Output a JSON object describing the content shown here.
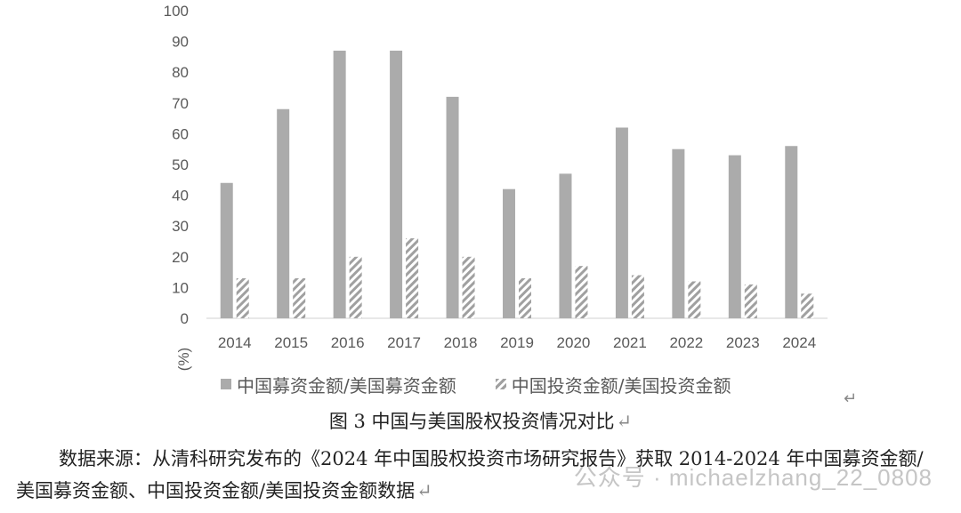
{
  "chart_data": {
    "type": "bar",
    "categories": [
      "2014",
      "2015",
      "2016",
      "2017",
      "2018",
      "2019",
      "2020",
      "2021",
      "2022",
      "2023",
      "2024"
    ],
    "series": [
      {
        "name": "中国募资金额/美国募资金额",
        "values": [
          44,
          68,
          87,
          87,
          72,
          42,
          47,
          62,
          55,
          53,
          56
        ]
      },
      {
        "name": "中国投资金额/美国投资金额",
        "values": [
          13,
          13,
          20,
          26,
          20,
          13,
          17,
          14,
          12,
          11,
          8
        ]
      }
    ],
    "ylabel": "(%)",
    "ylim": [
      0,
      100
    ],
    "yticks": [
      0,
      10,
      20,
      30,
      40,
      50,
      60,
      70,
      80,
      90,
      100
    ],
    "grid": false,
    "legend_position": "bottom",
    "colors": {
      "series1": "#ababab",
      "series2_hatch": "#a0a0a0"
    }
  },
  "caption": "图 3  中国与美国股权投资情况对比",
  "source_note": "数据来源：从清科研究发布的《2024 年中国股权投资市场研究报告》获取 2014-2024 年中国募资金额/美国募资金额、中国投资金额/美国投资金额数据",
  "watermark": "公众号 · michaelzhang_22_0808",
  "return_mark": "↵"
}
